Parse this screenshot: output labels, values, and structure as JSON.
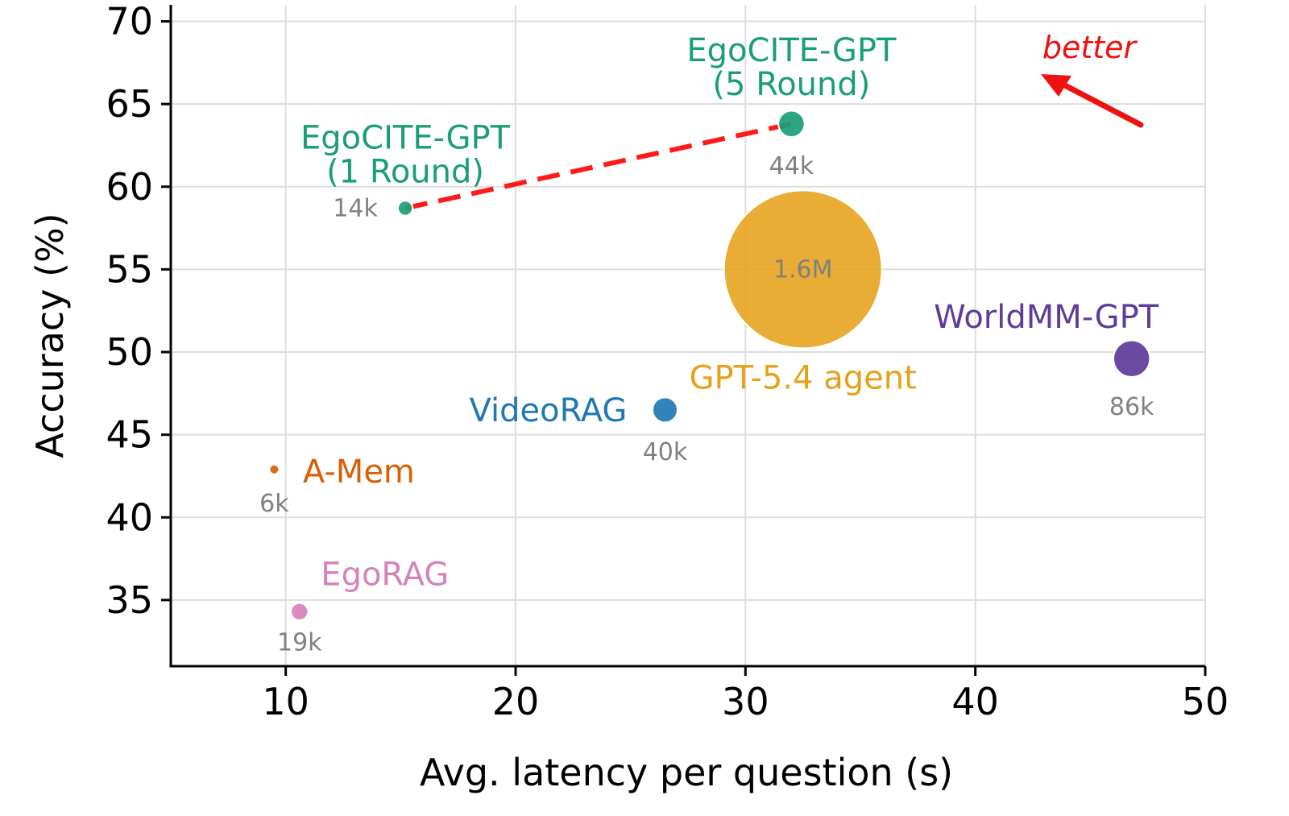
{
  "chart_data": {
    "type": "scatter",
    "xlabel": "Avg. latency per question (s)",
    "ylabel": "Accuracy (%)",
    "xlim": [
      5,
      50
    ],
    "ylim": [
      31,
      71
    ],
    "xticks": [
      10,
      20,
      30,
      40,
      50
    ],
    "yticks": [
      35,
      40,
      45,
      50,
      55,
      60,
      65,
      70
    ],
    "grid": true,
    "points": [
      {
        "name": "EgoCITE-GPT\n(1 Round)",
        "x": 15.2,
        "y": 58.7,
        "size_label": "14k",
        "tokens_k": 14,
        "color": "#1a9e77"
      },
      {
        "name": "EgoCITE-GPT\n(5 Round)",
        "x": 32.0,
        "y": 63.8,
        "size_label": "44k",
        "tokens_k": 44,
        "color": "#1a9e77"
      },
      {
        "name": "GPT-5.4 agent",
        "x": 32.5,
        "y": 55.0,
        "size_label": "1.6M",
        "tokens_k": 1600,
        "color": "#e6a118"
      },
      {
        "name": "WorldMM-GPT",
        "x": 46.8,
        "y": 49.6,
        "size_label": "86k",
        "tokens_k": 86,
        "color": "#5e3c99"
      },
      {
        "name": "VideoRAG",
        "x": 26.5,
        "y": 46.5,
        "size_label": "40k",
        "tokens_k": 40,
        "color": "#1f78b4"
      },
      {
        "name": "A-Mem",
        "x": 9.5,
        "y": 42.9,
        "size_label": "6k",
        "tokens_k": 6,
        "color": "#d95f02"
      },
      {
        "name": "EgoRAG",
        "x": 10.6,
        "y": 34.3,
        "size_label": "19k",
        "tokens_k": 19,
        "color": "#d582b8"
      }
    ],
    "connector": {
      "from": "EgoCITE-GPT\n(1 Round)",
      "to": "EgoCITE-GPT\n(5 Round)",
      "color": "#ff1a1a",
      "style": "dashed"
    },
    "annotation": {
      "text": "better",
      "color": "#ee1111",
      "arrow": "pointing up-left"
    }
  }
}
